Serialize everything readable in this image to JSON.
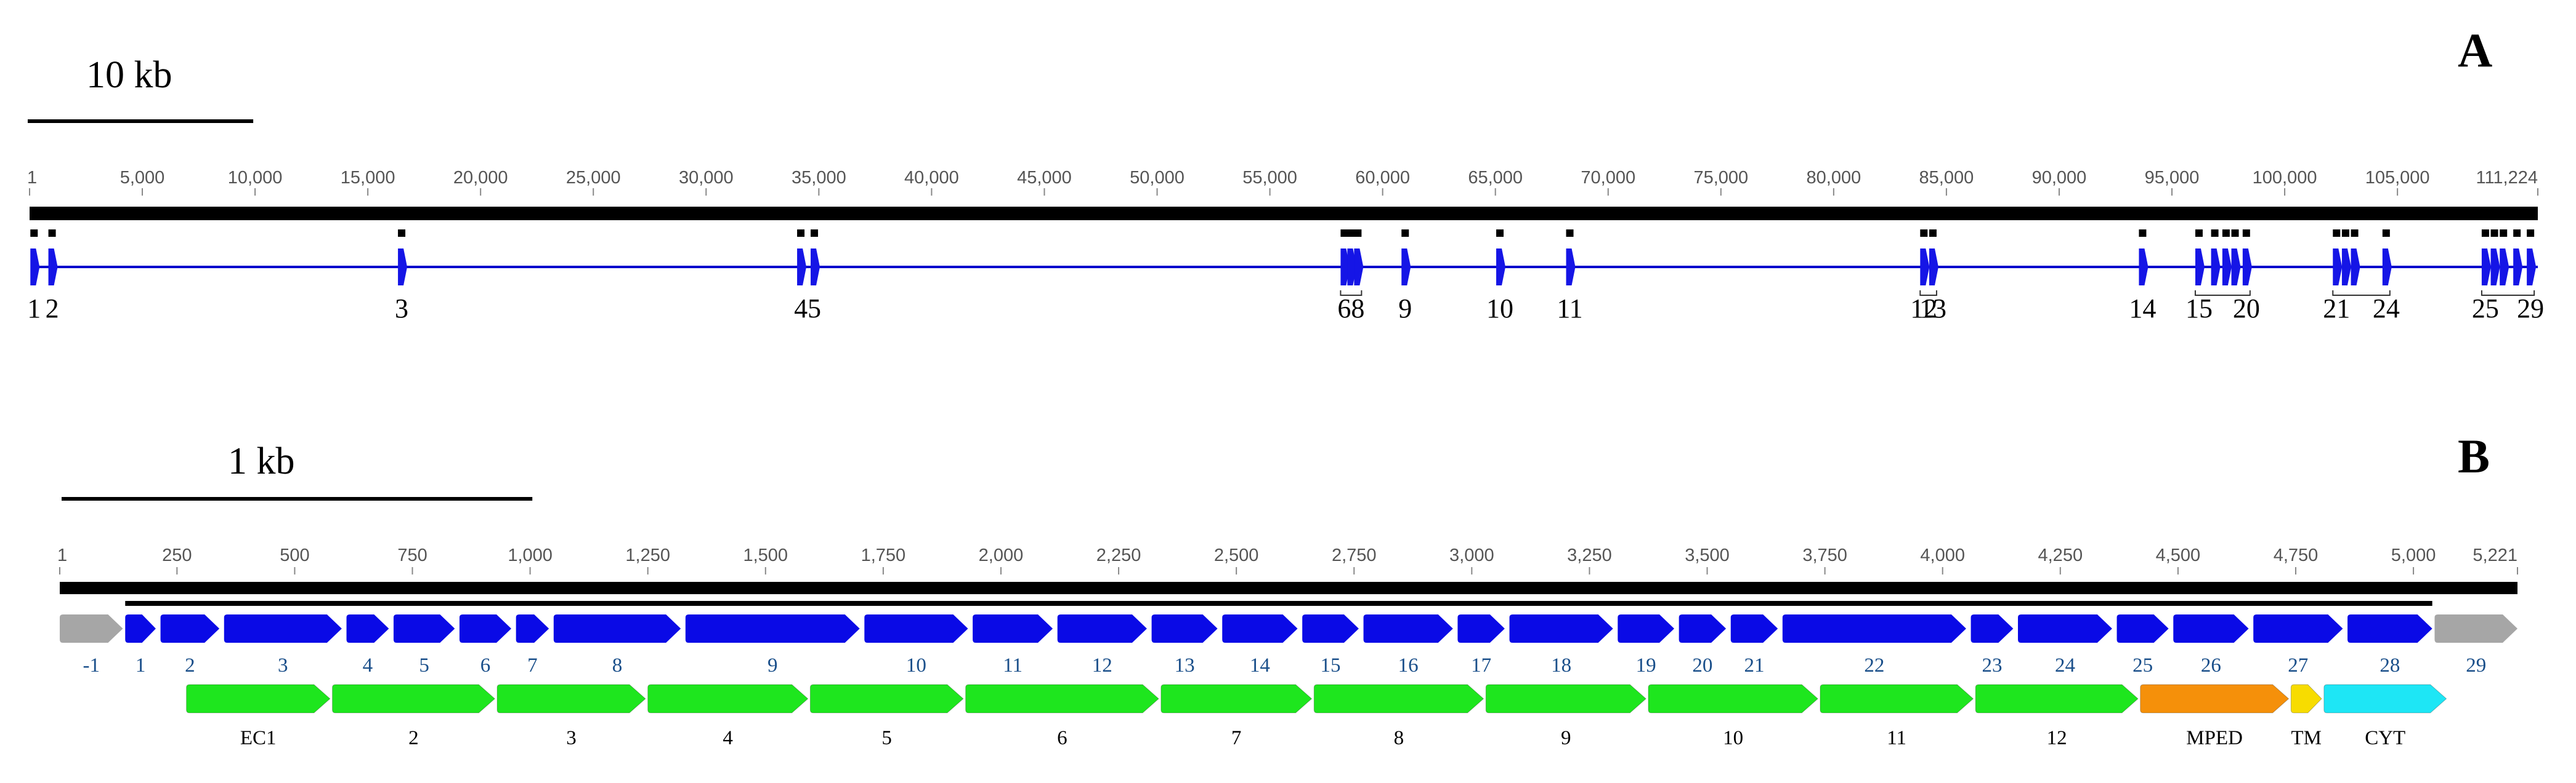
{
  "panel_a": {
    "label": "A",
    "scale_label": "10 kb",
    "scale_kb": 10,
    "length": 111224,
    "ticks": [
      {
        "v": 1,
        "t": "1"
      },
      {
        "v": 5000,
        "t": "5,000"
      },
      {
        "v": 10000,
        "t": "10,000"
      },
      {
        "v": 15000,
        "t": "15,000"
      },
      {
        "v": 20000,
        "t": "20,000"
      },
      {
        "v": 25000,
        "t": "25,000"
      },
      {
        "v": 30000,
        "t": "30,000"
      },
      {
        "v": 35000,
        "t": "35,000"
      },
      {
        "v": 40000,
        "t": "40,000"
      },
      {
        "v": 45000,
        "t": "45,000"
      },
      {
        "v": 50000,
        "t": "50,000"
      },
      {
        "v": 55000,
        "t": "55,000"
      },
      {
        "v": 60000,
        "t": "60,000"
      },
      {
        "v": 65000,
        "t": "65,000"
      },
      {
        "v": 70000,
        "t": "70,000"
      },
      {
        "v": 75000,
        "t": "75,000"
      },
      {
        "v": 80000,
        "t": "80,000"
      },
      {
        "v": 85000,
        "t": "85,000"
      },
      {
        "v": 90000,
        "t": "90,000"
      },
      {
        "v": 95000,
        "t": "95,000"
      },
      {
        "v": 100000,
        "t": "100,000"
      },
      {
        "v": 105000,
        "t": "105,000"
      },
      {
        "v": 111224,
        "t": "111,224"
      }
    ],
    "exons": [
      {
        "pos": 200,
        "label": "1"
      },
      {
        "pos": 1000,
        "label": "2"
      },
      {
        "pos": 16500,
        "label": "3"
      },
      {
        "pos": 34200,
        "label": "4"
      },
      {
        "pos": 34800,
        "label": "5"
      },
      {
        "pos": 58300,
        "label": "6"
      },
      {
        "pos": 58600,
        "label": ""
      },
      {
        "pos": 58900,
        "label": "8"
      },
      {
        "pos": 61000,
        "label": "9"
      },
      {
        "pos": 65200,
        "label": "10"
      },
      {
        "pos": 68300,
        "label": "11"
      },
      {
        "pos": 84000,
        "label": "12"
      },
      {
        "pos": 84400,
        "label": "13"
      },
      {
        "pos": 93700,
        "label": "14"
      },
      {
        "pos": 96200,
        "label": "15"
      },
      {
        "pos": 96900,
        "label": ""
      },
      {
        "pos": 97400,
        "label": ""
      },
      {
        "pos": 97800,
        "label": ""
      },
      {
        "pos": 98300,
        "label": "20"
      },
      {
        "pos": 102300,
        "label": "21"
      },
      {
        "pos": 102700,
        "label": ""
      },
      {
        "pos": 103100,
        "label": ""
      },
      {
        "pos": 104500,
        "label": "24"
      },
      {
        "pos": 108900,
        "label": "25"
      },
      {
        "pos": 109300,
        "label": ""
      },
      {
        "pos": 109700,
        "label": ""
      },
      {
        "pos": 110300,
        "label": ""
      },
      {
        "pos": 110900,
        "label": "29"
      }
    ],
    "brackets": [
      [
        58300,
        58900
      ],
      [
        84000,
        84400
      ],
      [
        96200,
        98300
      ],
      [
        102300,
        104500
      ],
      [
        108900,
        110900
      ]
    ],
    "colors": {
      "line": "#0000cc",
      "exon": "#1515e6",
      "axis": "#000000"
    }
  },
  "panel_b": {
    "label": "B",
    "scale_label": "1 kb",
    "scale_bp": 1000,
    "length": 5221,
    "ticks": [
      {
        "v": 1,
        "t": "1"
      },
      {
        "v": 250,
        "t": "250"
      },
      {
        "v": 500,
        "t": "500"
      },
      {
        "v": 750,
        "t": "750"
      },
      {
        "v": 1000,
        "t": "1,000"
      },
      {
        "v": 1250,
        "t": "1,250"
      },
      {
        "v": 1500,
        "t": "1,500"
      },
      {
        "v": 1750,
        "t": "1,750"
      },
      {
        "v": 2000,
        "t": "2,000"
      },
      {
        "v": 2250,
        "t": "2,250"
      },
      {
        "v": 2500,
        "t": "2,500"
      },
      {
        "v": 2750,
        "t": "2,750"
      },
      {
        "v": 3000,
        "t": "3,000"
      },
      {
        "v": 3250,
        "t": "3,250"
      },
      {
        "v": 3500,
        "t": "3,500"
      },
      {
        "v": 3750,
        "t": "3,750"
      },
      {
        "v": 4000,
        "t": "4,000"
      },
      {
        "v": 4250,
        "t": "4,250"
      },
      {
        "v": 4500,
        "t": "4,500"
      },
      {
        "v": 4750,
        "t": "4,750"
      },
      {
        "v": 5000,
        "t": "5,000"
      },
      {
        "v": 5221,
        "t": "5,221"
      }
    ],
    "cds": [
      140,
      5040
    ],
    "exons": [
      {
        "label": "-1",
        "start": 1,
        "end": 135,
        "kind": "utr"
      },
      {
        "label": "1",
        "start": 140,
        "end": 205,
        "kind": "cds"
      },
      {
        "label": "2",
        "start": 215,
        "end": 340,
        "kind": "cds"
      },
      {
        "label": "3",
        "start": 350,
        "end": 600,
        "kind": "cds"
      },
      {
        "label": "4",
        "start": 610,
        "end": 700,
        "kind": "cds"
      },
      {
        "label": "5",
        "start": 710,
        "end": 840,
        "kind": "cds"
      },
      {
        "label": "6",
        "start": 850,
        "end": 960,
        "kind": "cds"
      },
      {
        "label": "7",
        "start": 970,
        "end": 1040,
        "kind": "cds"
      },
      {
        "label": "8",
        "start": 1050,
        "end": 1320,
        "kind": "cds"
      },
      {
        "label": "9",
        "start": 1330,
        "end": 1700,
        "kind": "cds"
      },
      {
        "label": "10",
        "start": 1710,
        "end": 1930,
        "kind": "cds"
      },
      {
        "label": "11",
        "start": 1940,
        "end": 2110,
        "kind": "cds"
      },
      {
        "label": "12",
        "start": 2120,
        "end": 2310,
        "kind": "cds"
      },
      {
        "label": "13",
        "start": 2320,
        "end": 2460,
        "kind": "cds"
      },
      {
        "label": "14",
        "start": 2470,
        "end": 2630,
        "kind": "cds"
      },
      {
        "label": "15",
        "start": 2640,
        "end": 2760,
        "kind": "cds"
      },
      {
        "label": "16",
        "start": 2770,
        "end": 2960,
        "kind": "cds"
      },
      {
        "label": "17",
        "start": 2970,
        "end": 3070,
        "kind": "cds"
      },
      {
        "label": "18",
        "start": 3080,
        "end": 3300,
        "kind": "cds"
      },
      {
        "label": "19",
        "start": 3310,
        "end": 3430,
        "kind": "cds"
      },
      {
        "label": "20",
        "start": 3440,
        "end": 3540,
        "kind": "cds"
      },
      {
        "label": "21",
        "start": 3550,
        "end": 3650,
        "kind": "cds"
      },
      {
        "label": "22",
        "start": 3660,
        "end": 4050,
        "kind": "cds"
      },
      {
        "label": "23",
        "start": 4060,
        "end": 4150,
        "kind": "cds"
      },
      {
        "label": "24",
        "start": 4160,
        "end": 4360,
        "kind": "cds"
      },
      {
        "label": "25",
        "start": 4370,
        "end": 4480,
        "kind": "cds"
      },
      {
        "label": "26",
        "start": 4490,
        "end": 4650,
        "kind": "cds"
      },
      {
        "label": "27",
        "start": 4660,
        "end": 4850,
        "kind": "cds"
      },
      {
        "label": "28",
        "start": 4860,
        "end": 5040,
        "kind": "cds"
      },
      {
        "label": "29",
        "start": 5045,
        "end": 5221,
        "kind": "utr"
      }
    ],
    "domains": [
      {
        "label": "EC1",
        "start": 270,
        "end": 575,
        "kind": "ec"
      },
      {
        "label": "2",
        "start": 580,
        "end": 925,
        "kind": "ec"
      },
      {
        "label": "3",
        "start": 930,
        "end": 1245,
        "kind": "ec"
      },
      {
        "label": "4",
        "start": 1250,
        "end": 1590,
        "kind": "ec"
      },
      {
        "label": "5",
        "start": 1595,
        "end": 1920,
        "kind": "ec"
      },
      {
        "label": "6",
        "start": 1925,
        "end": 2335,
        "kind": "ec"
      },
      {
        "label": "7",
        "start": 2340,
        "end": 2660,
        "kind": "ec"
      },
      {
        "label": "8",
        "start": 2665,
        "end": 3025,
        "kind": "ec"
      },
      {
        "label": "9",
        "start": 3030,
        "end": 3370,
        "kind": "ec"
      },
      {
        "label": "10",
        "start": 3375,
        "end": 3735,
        "kind": "ec"
      },
      {
        "label": "11",
        "start": 3740,
        "end": 4065,
        "kind": "ec"
      },
      {
        "label": "12",
        "start": 4070,
        "end": 4415,
        "kind": "ec"
      },
      {
        "label": "MPED",
        "start": 4420,
        "end": 4735,
        "kind": "mped"
      },
      {
        "label": "TM",
        "start": 4740,
        "end": 4805,
        "kind": "tm"
      },
      {
        "label": "CYT",
        "start": 4810,
        "end": 5070,
        "kind": "cyt"
      }
    ],
    "colors": {
      "cds": "#0a0ae6",
      "utr": "#a6a6a6",
      "ec": "#1ee61e",
      "mped": "#f5900a",
      "tm": "#f7dc00",
      "cyt": "#1ee6f5",
      "exon_label": "#1a4f8a"
    }
  }
}
